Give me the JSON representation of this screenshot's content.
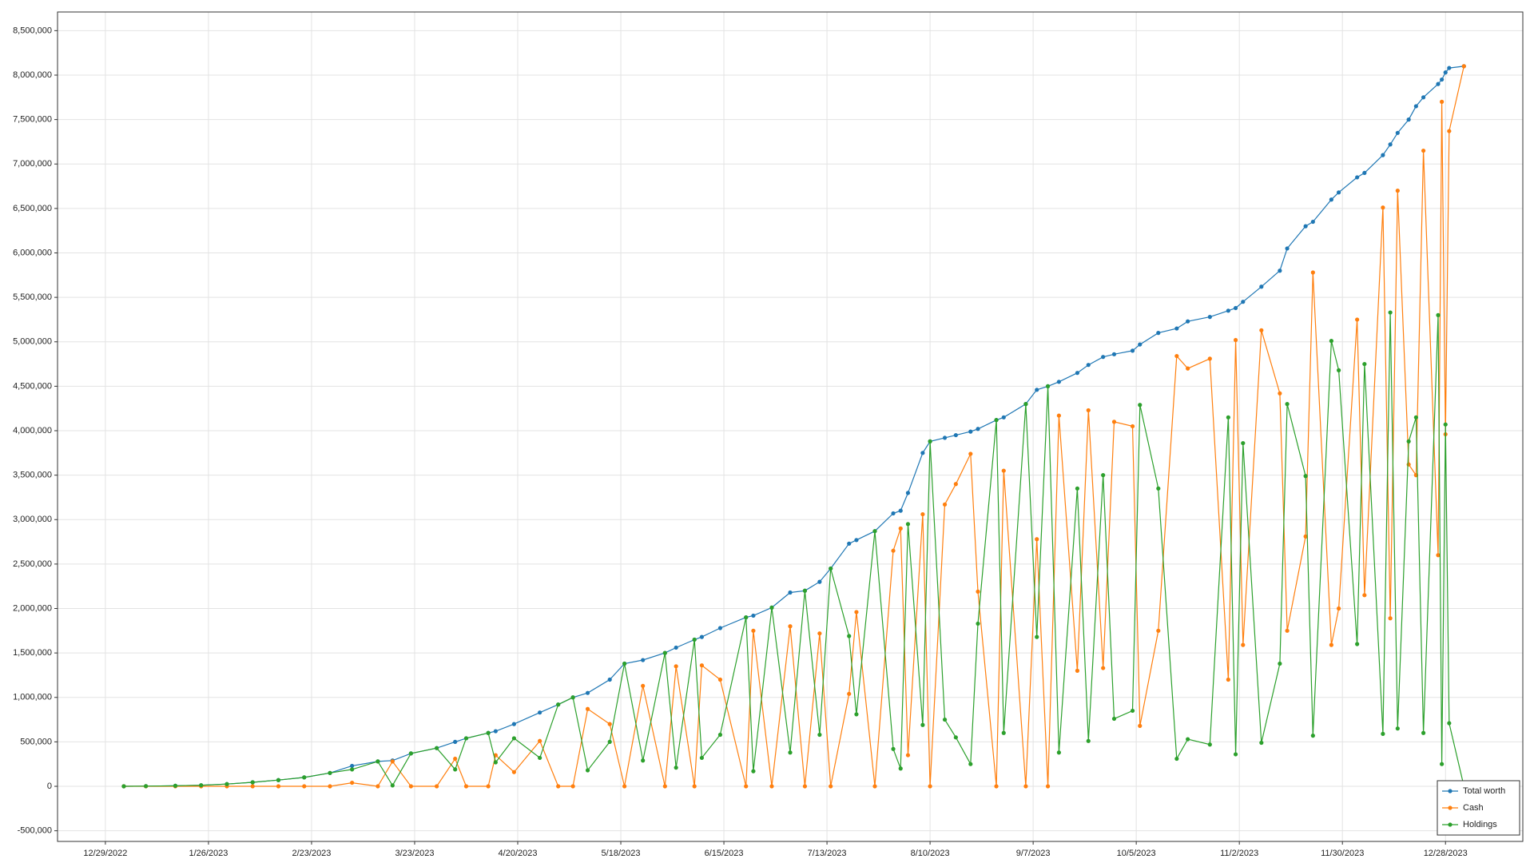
{
  "chart_data": {
    "type": "line",
    "x": [
      "1/3/2023",
      "1/9/2023",
      "1/17/2023",
      "1/24/2023",
      "1/31/2023",
      "2/7/2023",
      "2/14/2023",
      "2/21/2023",
      "2/28/2023",
      "3/6/2023",
      "3/13/2023",
      "3/17/2023",
      "3/22/2023",
      "3/29/2023",
      "4/3/2023",
      "4/6/2023",
      "4/12/2023",
      "4/14/2023",
      "4/19/2023",
      "4/26/2023",
      "5/1/2023",
      "5/5/2023",
      "5/9/2023",
      "5/15/2023",
      "5/19/2023",
      "5/24/2023",
      "5/30/2023",
      "6/2/2023",
      "6/7/2023",
      "6/9/2023",
      "6/14/2023",
      "6/21/2023",
      "6/23/2023",
      "6/28/2023",
      "7/3/2023",
      "7/7/2023",
      "7/11/2023",
      "7/14/2023",
      "7/19/2023",
      "7/21/2023",
      "7/26/2023",
      "7/31/2023",
      "8/2/2023",
      "8/4/2023",
      "8/8/2023",
      "8/10/2023",
      "8/14/2023",
      "8/17/2023",
      "8/21/2023",
      "8/23/2023",
      "8/28/2023",
      "8/30/2023",
      "9/5/2023",
      "9/8/2023",
      "9/11/2023",
      "9/14/2023",
      "9/19/2023",
      "9/22/2023",
      "9/26/2023",
      "9/29/2023",
      "10/4/2023",
      "10/6/2023",
      "10/11/2023",
      "10/16/2023",
      "10/19/2023",
      "10/25/2023",
      "10/30/2023",
      "11/1/2023",
      "11/3/2023",
      "11/8/2023",
      "11/13/2023",
      "11/15/2023",
      "11/20/2023",
      "11/22/2023",
      "11/27/2023",
      "11/29/2023",
      "12/4/2023",
      "12/6/2023",
      "12/11/2023",
      "12/13/2023",
      "12/15/2023",
      "12/18/2023",
      "12/20/2023",
      "12/22/2023",
      "12/26/2023",
      "12/27/2023",
      "12/28/2023",
      "12/29/2023",
      "1/2/2024"
    ],
    "series": [
      {
        "name": "Total worth",
        "color": "#1f77b4",
        "values": [
          0,
          2000,
          6000,
          12000,
          25000,
          45000,
          70000,
          100000,
          150000,
          230000,
          280000,
          290000,
          370000,
          430000,
          500000,
          540000,
          600000,
          620000,
          700000,
          830000,
          920000,
          1000000,
          1050000,
          1200000,
          1380000,
          1420000,
          1500000,
          1560000,
          1650000,
          1680000,
          1780000,
          1900000,
          1920000,
          2010000,
          2180000,
          2200000,
          2300000,
          2450000,
          2730000,
          2770000,
          2870000,
          3070000,
          3100000,
          3300000,
          3750000,
          3880000,
          3920000,
          3950000,
          3990000,
          4020000,
          4120000,
          4150000,
          4300000,
          4460000,
          4500000,
          4550000,
          4650000,
          4740000,
          4830000,
          4860000,
          4900000,
          4970000,
          5100000,
          5150000,
          5230000,
          5280000,
          5350000,
          5380000,
          5450000,
          5620000,
          5800000,
          6050000,
          6300000,
          6350000,
          6600000,
          6680000,
          6850000,
          6900000,
          7100000,
          7220000,
          7350000,
          7500000,
          7650000,
          7750000,
          7900000,
          7950000,
          8030000,
          8080000,
          8100000
        ]
      },
      {
        "name": "Cash",
        "color": "#ff7f0e",
        "values": [
          0,
          0,
          0,
          0,
          0,
          0,
          0,
          0,
          0,
          40000,
          0,
          280000,
          0,
          0,
          310000,
          0,
          0,
          350000,
          160000,
          510000,
          0,
          0,
          870000,
          700000,
          0,
          1130000,
          0,
          1350000,
          0,
          1360000,
          1200000,
          0,
          1750000,
          0,
          1800000,
          0,
          1720000,
          0,
          1040000,
          1960000,
          0,
          2650000,
          2900000,
          350000,
          3060000,
          0,
          3170000,
          3400000,
          3740000,
          2190000,
          0,
          3550000,
          0,
          2780000,
          0,
          4170000,
          1300000,
          4230000,
          1330000,
          4100000,
          4050000,
          680000,
          1750000,
          4840000,
          4700000,
          4810000,
          1200000,
          5020000,
          1590000,
          5130000,
          4420000,
          1750000,
          2810000,
          5780000,
          1590000,
          2000000,
          5250000,
          2150000,
          6510000,
          1890000,
          6700000,
          3620000,
          3500000,
          7150000,
          2600000,
          7700000,
          3960000,
          7370000,
          8100000
        ]
      },
      {
        "name": "Holdings",
        "color": "#2ca02c",
        "values": [
          0,
          2000,
          6000,
          12000,
          25000,
          45000,
          70000,
          100000,
          150000,
          190000,
          280000,
          10000,
          370000,
          430000,
          190000,
          540000,
          600000,
          270000,
          540000,
          320000,
          920000,
          1000000,
          180000,
          500000,
          1380000,
          290000,
          1500000,
          210000,
          1650000,
          320000,
          580000,
          1900000,
          170000,
          2010000,
          380000,
          2200000,
          580000,
          2450000,
          1690000,
          810000,
          2870000,
          420000,
          200000,
          2950000,
          690000,
          3880000,
          750000,
          550000,
          250000,
          1830000,
          4120000,
          600000,
          4300000,
          1680000,
          4500000,
          380000,
          3350000,
          510000,
          3500000,
          760000,
          850000,
          4290000,
          3350000,
          310000,
          530000,
          470000,
          4150000,
          360000,
          3860000,
          490000,
          1380000,
          4300000,
          3490000,
          570000,
          5010000,
          4680000,
          1600000,
          4750000,
          590000,
          5330000,
          650000,
          3880000,
          4150000,
          600000,
          5300000,
          250000,
          4070000,
          710000,
          0
        ]
      }
    ],
    "xlim": [
      "12/16/2022",
      "1/18/2024"
    ],
    "xticks": [
      "12/29/2022",
      "1/26/2023",
      "2/23/2023",
      "3/23/2023",
      "4/20/2023",
      "5/18/2023",
      "6/15/2023",
      "7/13/2023",
      "8/10/2023",
      "9/7/2023",
      "10/5/2023",
      "11/2/2023",
      "11/30/2023",
      "12/28/2023"
    ],
    "ylim": [
      -620000,
      8710000
    ],
    "yticks": [
      {
        "value": -500000,
        "label": "-500,000"
      },
      {
        "value": 0,
        "label": "0"
      },
      {
        "value": 500000,
        "label": "500,000"
      },
      {
        "value": 1000000,
        "label": "1,000,000"
      },
      {
        "value": 1500000,
        "label": "1,500,000"
      },
      {
        "value": 2000000,
        "label": "2,000,000"
      },
      {
        "value": 2500000,
        "label": "2,500,000"
      },
      {
        "value": 3000000,
        "label": "3,000,000"
      },
      {
        "value": 3500000,
        "label": "3,500,000"
      },
      {
        "value": 4000000,
        "label": "4,000,000"
      },
      {
        "value": 4500000,
        "label": "4,500,000"
      },
      {
        "value": 5000000,
        "label": "5,000,000"
      },
      {
        "value": 5500000,
        "label": "5,500,000"
      },
      {
        "value": 6000000,
        "label": "6,000,000"
      },
      {
        "value": 6500000,
        "label": "6,500,000"
      },
      {
        "value": 7000000,
        "label": "7,000,000"
      },
      {
        "value": 7500000,
        "label": "7,500,000"
      },
      {
        "value": 8000000,
        "label": "8,000,000"
      },
      {
        "value": 8500000,
        "label": "8,500,000"
      }
    ],
    "grid": true,
    "legend": "bottom-right"
  }
}
